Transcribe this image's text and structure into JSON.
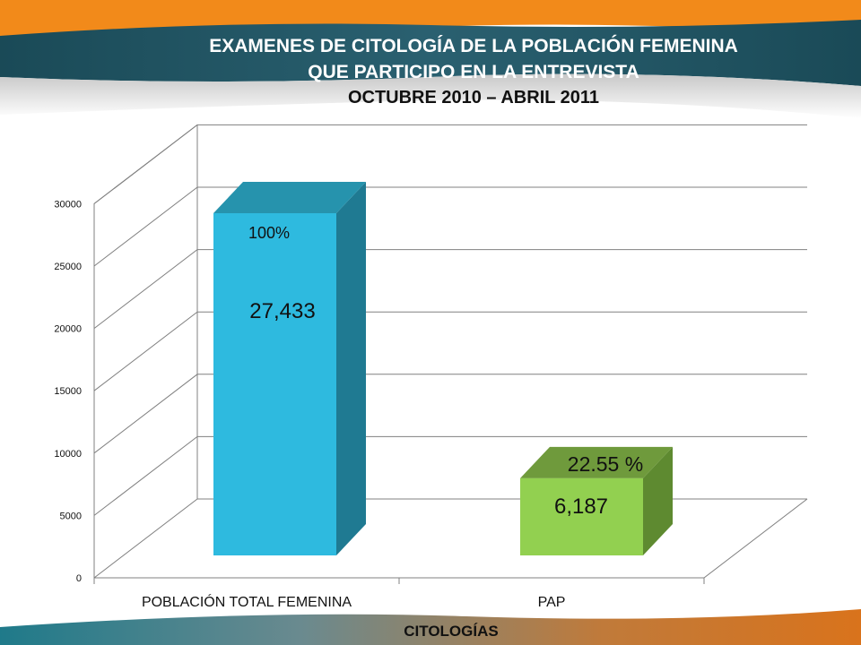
{
  "slide": {
    "title_line_1": "EXAMENES DE CITOLOGÍA DE LA POBLACIÓN FEMENINA",
    "title_line_2": "QUE PARTICIPO EN LA ENTREVISTA",
    "subtitle": "OCTUBRE 2010 – ABRIL 2011",
    "colors": {
      "teal_band": "#1e4f5c",
      "orange_band": "#f28a1a",
      "white": "#ffffff"
    }
  },
  "chart_data": {
    "type": "bar",
    "title": "",
    "xlabel": "CITOLOGÍAS",
    "ylabel": "",
    "ylim": [
      0,
      30000
    ],
    "yticks": [
      "0",
      "5000",
      "10000",
      "15000",
      "20000",
      "25000",
      "30000"
    ],
    "categories": [
      "POBLACIÓN TOTAL FEMENINA",
      "PAP"
    ],
    "values": [
      27433,
      6187
    ],
    "value_labels": [
      "27,433",
      "6,187"
    ],
    "percent_labels": [
      "100%",
      "22.55 %"
    ],
    "bar_colors": [
      {
        "front": "#2ebadf",
        "side": "#1f7a92",
        "top": "#2693ad"
      },
      {
        "front": "#92d050",
        "side": "#5e8a30",
        "top": "#6f9a3c"
      }
    ],
    "grid": true,
    "grid_color": "#808080"
  }
}
